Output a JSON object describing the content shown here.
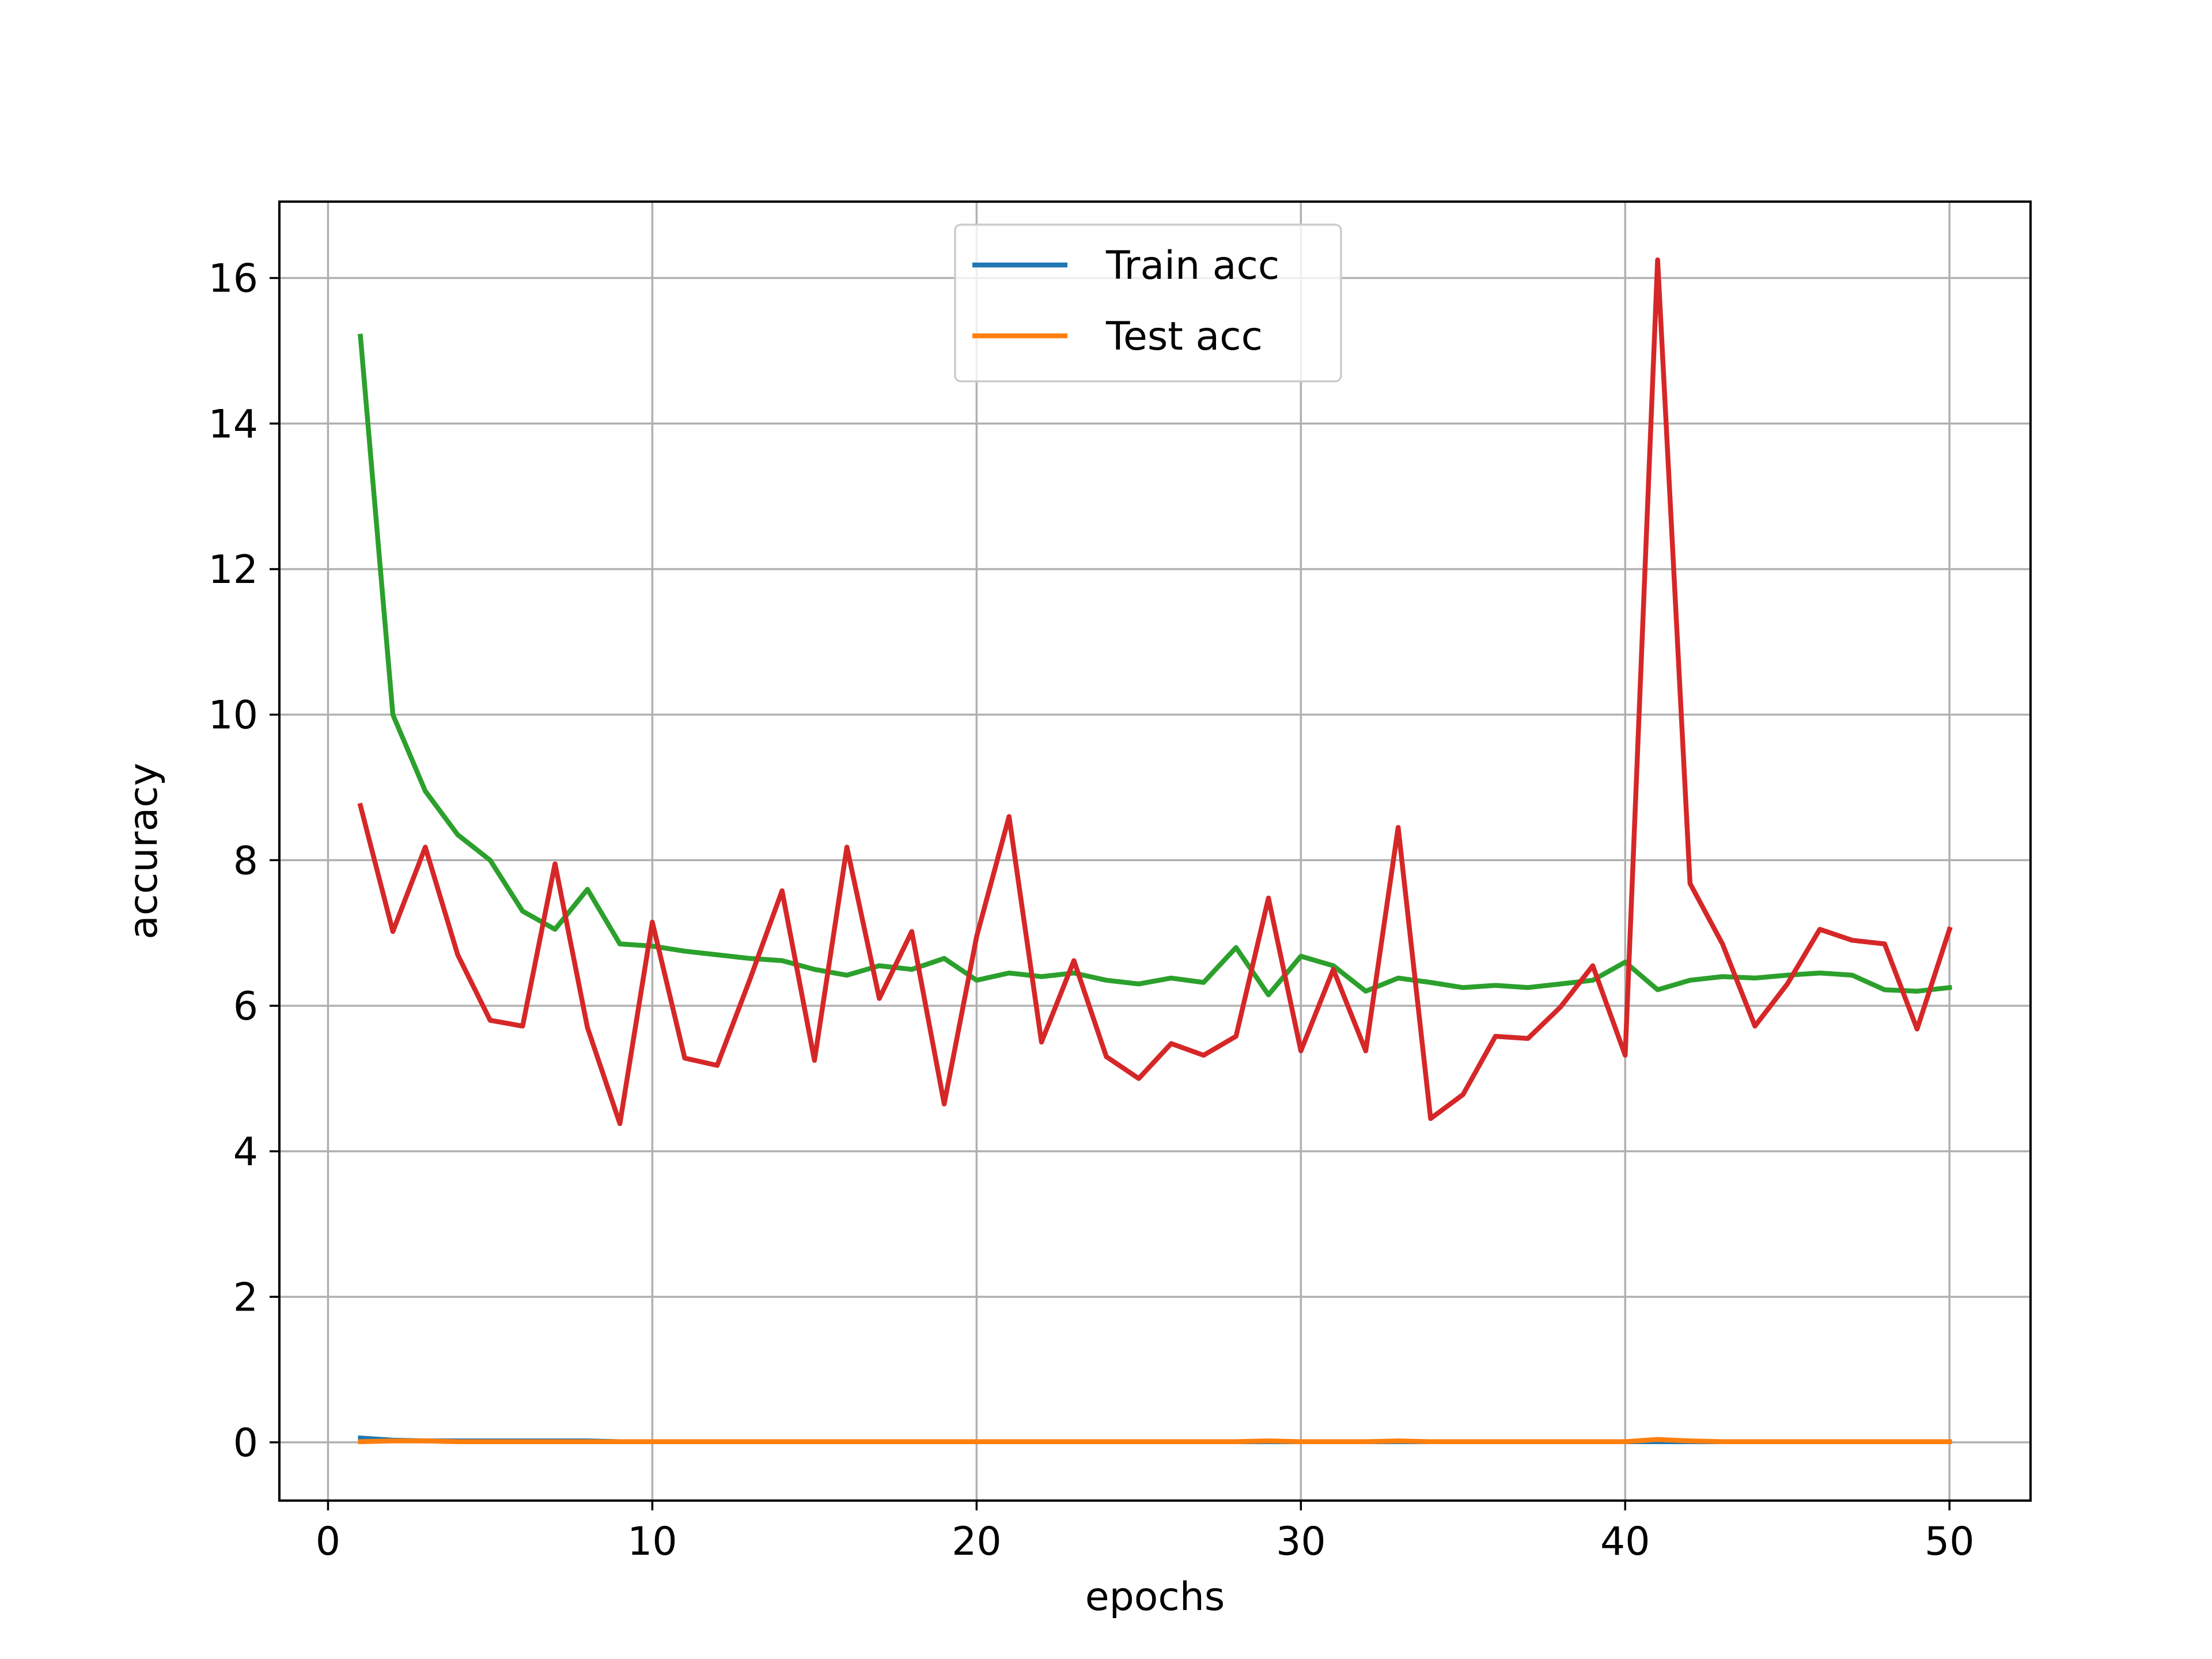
{
  "chart_data": {
    "type": "line",
    "title": "",
    "xlabel": "epochs",
    "ylabel": "accuracy",
    "xlim": [
      -1.5,
      52.5
    ],
    "ylim": [
      -0.8,
      17.05
    ],
    "xticks": [
      0,
      10,
      20,
      30,
      40,
      50
    ],
    "yticks": [
      0,
      2,
      4,
      6,
      8,
      10,
      12,
      14,
      16
    ],
    "grid": true,
    "legend_position": "upper center",
    "x": [
      1,
      2,
      3,
      4,
      5,
      6,
      7,
      8,
      9,
      10,
      11,
      12,
      13,
      14,
      15,
      16,
      17,
      18,
      19,
      20,
      21,
      22,
      23,
      24,
      25,
      26,
      27,
      28,
      29,
      30,
      31,
      32,
      33,
      34,
      35,
      36,
      37,
      38,
      39,
      40,
      41,
      42,
      43,
      44,
      45,
      46,
      47,
      48,
      49,
      50
    ],
    "series": [
      {
        "name": "Train acc",
        "color": "#1f77b4",
        "legend": true,
        "values": [
          0.06,
          0.03,
          0.02,
          0.02,
          0.02,
          0.02,
          0.02,
          0.02,
          0.01,
          0.01,
          0.01,
          0.01,
          0.01,
          0.01,
          0.01,
          0.01,
          0.01,
          0.01,
          0.01,
          0.01,
          0.01,
          0.01,
          0.01,
          0.01,
          0.01,
          0.01,
          0.01,
          0.01,
          0.01,
          0.01,
          0.01,
          0.01,
          0.01,
          0.01,
          0.01,
          0.01,
          0.01,
          0.01,
          0.01,
          0.01,
          0.01,
          0.01,
          0.01,
          0.01,
          0.01,
          0.01,
          0.01,
          0.01,
          0.01,
          0.01
        ]
      },
      {
        "name": "Test acc",
        "color": "#ff7f0e",
        "legend": true,
        "values": [
          0.01,
          0.02,
          0.02,
          0.01,
          0.01,
          0.01,
          0.01,
          0.01,
          0.01,
          0.01,
          0.01,
          0.01,
          0.01,
          0.01,
          0.01,
          0.01,
          0.01,
          0.01,
          0.01,
          0.01,
          0.01,
          0.01,
          0.01,
          0.01,
          0.01,
          0.01,
          0.01,
          0.01,
          0.02,
          0.01,
          0.01,
          0.01,
          0.02,
          0.01,
          0.01,
          0.01,
          0.01,
          0.01,
          0.01,
          0.01,
          0.04,
          0.02,
          0.01,
          0.01,
          0.01,
          0.01,
          0.01,
          0.01,
          0.01,
          0.01
        ]
      },
      {
        "color": "#2ca02c",
        "legend": false,
        "values": [
          15.2,
          10.0,
          8.95,
          8.35,
          8.0,
          7.3,
          7.05,
          7.6,
          6.85,
          6.82,
          6.75,
          6.7,
          6.65,
          6.62,
          6.5,
          6.42,
          6.55,
          6.5,
          6.65,
          6.35,
          6.45,
          6.4,
          6.45,
          6.35,
          6.3,
          6.38,
          6.32,
          6.8,
          6.15,
          6.68,
          6.55,
          6.2,
          6.38,
          6.32,
          6.25,
          6.28,
          6.25,
          6.3,
          6.35,
          6.6,
          6.22,
          6.35,
          6.4,
          6.38,
          6.42,
          6.45,
          6.42,
          6.22,
          6.2,
          6.25
        ]
      },
      {
        "color": "#d62728",
        "legend": false,
        "values": [
          8.75,
          7.02,
          8.18,
          6.7,
          5.8,
          5.72,
          7.95,
          5.7,
          4.38,
          7.15,
          5.28,
          5.18,
          6.35,
          7.58,
          5.25,
          8.18,
          6.1,
          7.02,
          4.65,
          6.95,
          8.6,
          5.5,
          6.62,
          5.3,
          5.0,
          5.48,
          5.32,
          5.58,
          7.48,
          5.38,
          6.5,
          5.38,
          8.45,
          4.45,
          4.78,
          5.58,
          5.55,
          5.98,
          6.55,
          5.32,
          16.25,
          7.68,
          6.85,
          5.72,
          6.3,
          7.05,
          6.9,
          6.85,
          5.68,
          7.05
        ]
      }
    ]
  }
}
